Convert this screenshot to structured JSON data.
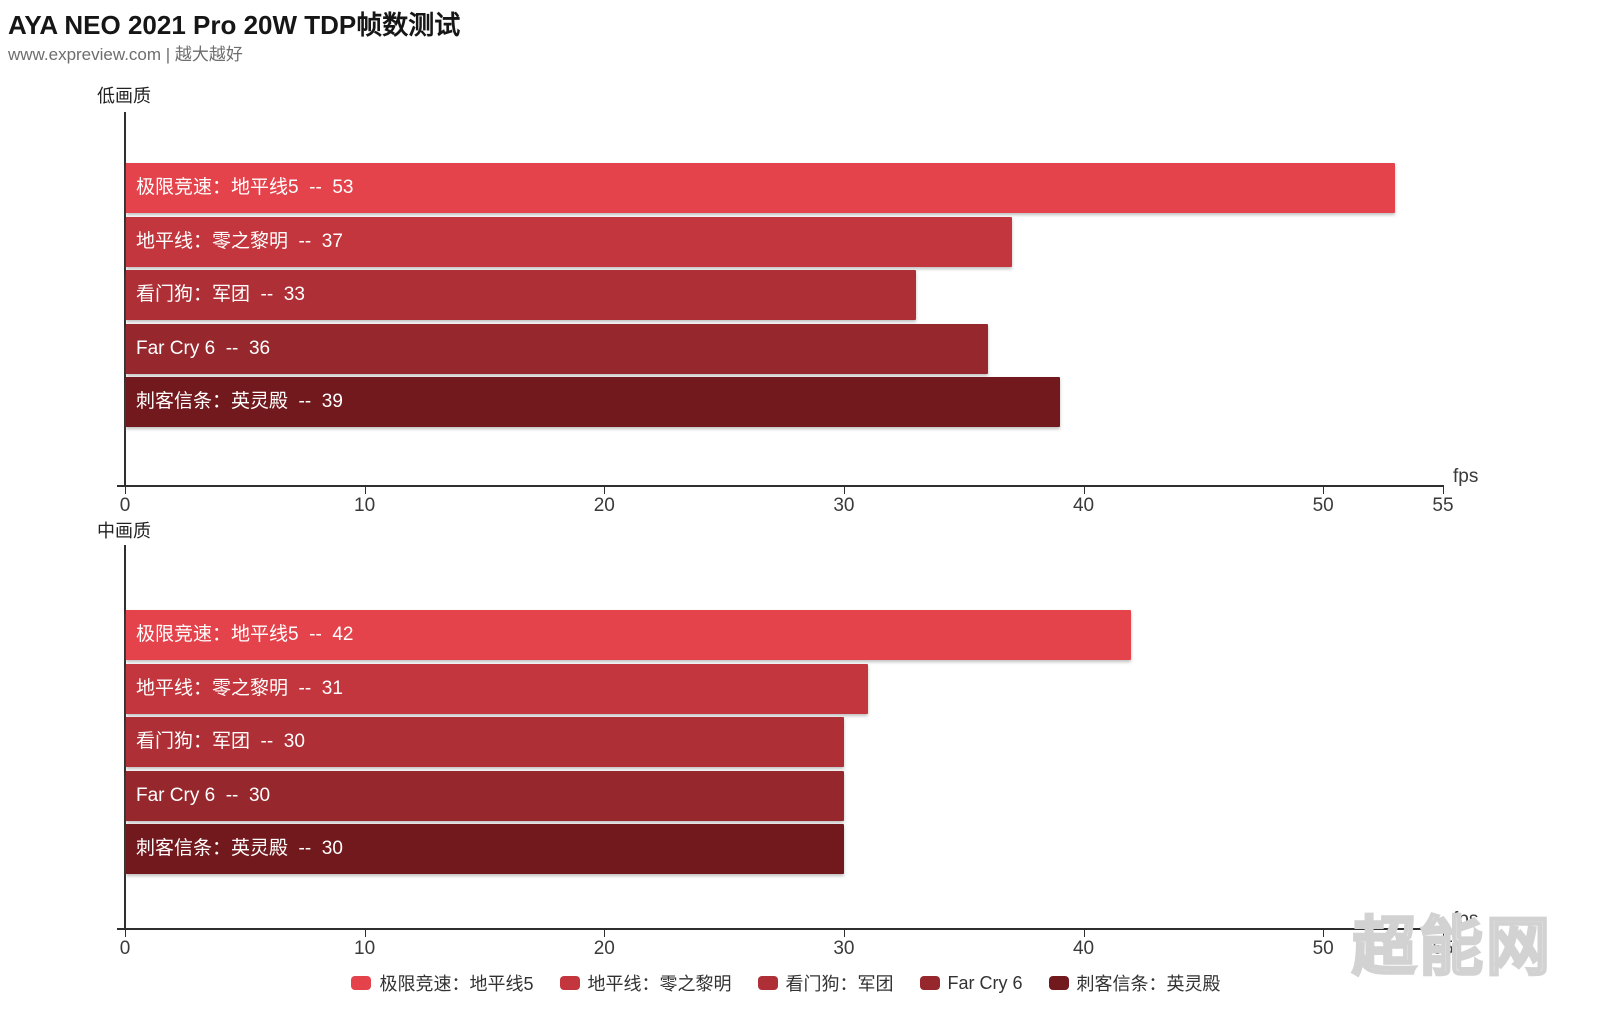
{
  "header": {
    "title": "AYA NEO 2021 Pro 20W TDP帧数测试",
    "subtitle": "www.expreview.com | 越大越好"
  },
  "palette": [
    "#e4434b",
    "#c3363d",
    "#ae2f35",
    "#96272c",
    "#71191d"
  ],
  "axis_color": "#2f2f2f",
  "legend": {
    "items": [
      "极限竞速：地平线5",
      "地平线：零之黎明",
      "看门狗：军团",
      "Far Cry 6",
      "刺客信条：英灵殿"
    ]
  },
  "watermark": "超能网",
  "chart_data": [
    {
      "type": "bar",
      "orientation": "horizontal",
      "title": "低画质",
      "categories": [
        "极限竞速：地平线5",
        "地平线：零之黎明",
        "看门狗：军团",
        "Far Cry 6",
        "刺客信条：英灵殿"
      ],
      "values": [
        53,
        37,
        33,
        36,
        39
      ],
      "xlabel": "fps",
      "xlim": [
        0,
        55
      ],
      "xticks": [
        0,
        10,
        20,
        30,
        40,
        50,
        55
      ],
      "grid": false,
      "bar_label_separator": "--",
      "legend_position": "none"
    },
    {
      "type": "bar",
      "orientation": "horizontal",
      "title": "中画质",
      "categories": [
        "极限竞速：地平线5",
        "地平线：零之黎明",
        "看门狗：军团",
        "Far Cry 6",
        "刺客信条：英灵殿"
      ],
      "values": [
        42,
        31,
        30,
        30,
        30
      ],
      "xlabel": "fps",
      "xlim": [
        0,
        55
      ],
      "xticks": [
        0,
        10,
        20,
        30,
        40,
        50,
        55
      ],
      "grid": false,
      "bar_label_separator": "--",
      "legend_position": "bottom"
    }
  ]
}
